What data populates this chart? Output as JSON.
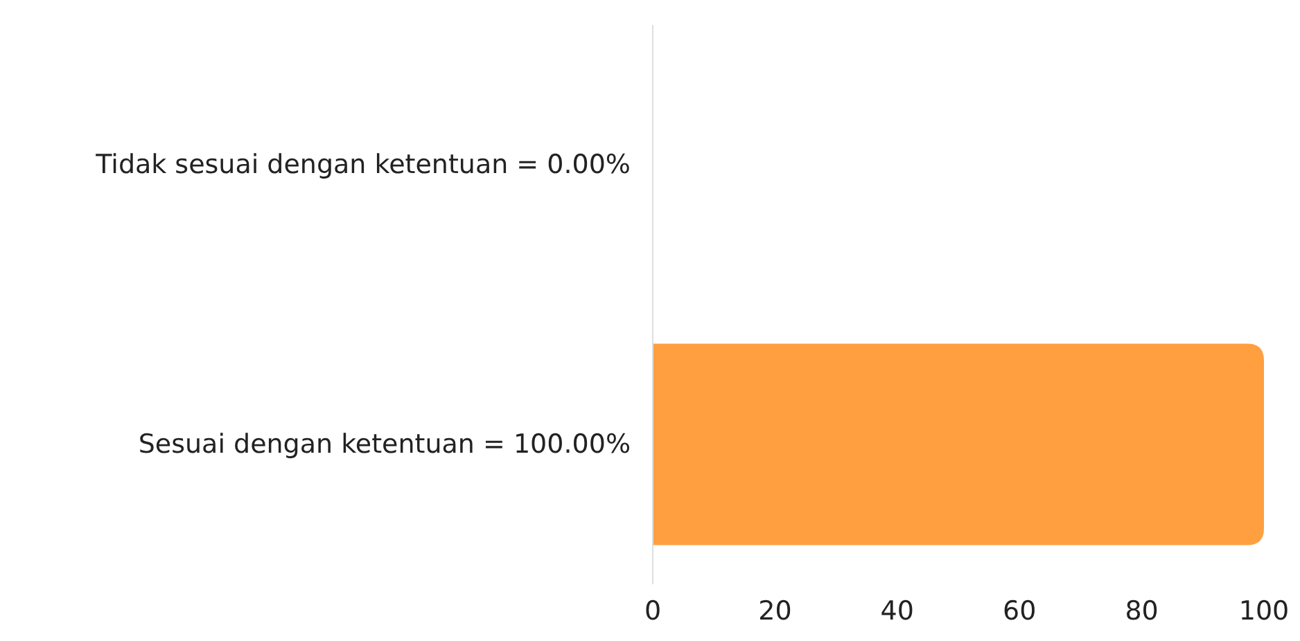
{
  "chart_data": {
    "type": "bar",
    "orientation": "horizontal",
    "categories": [
      "Tidak sesuai dengan ketentuan = 0.00%",
      "Sesuai dengan ketentuan = 100.00%"
    ],
    "values": [
      0,
      100
    ],
    "color": "#ff9f40",
    "xlim": [
      0,
      100
    ],
    "xticks": [
      0,
      20,
      40,
      60,
      80,
      100
    ],
    "grid": false
  }
}
